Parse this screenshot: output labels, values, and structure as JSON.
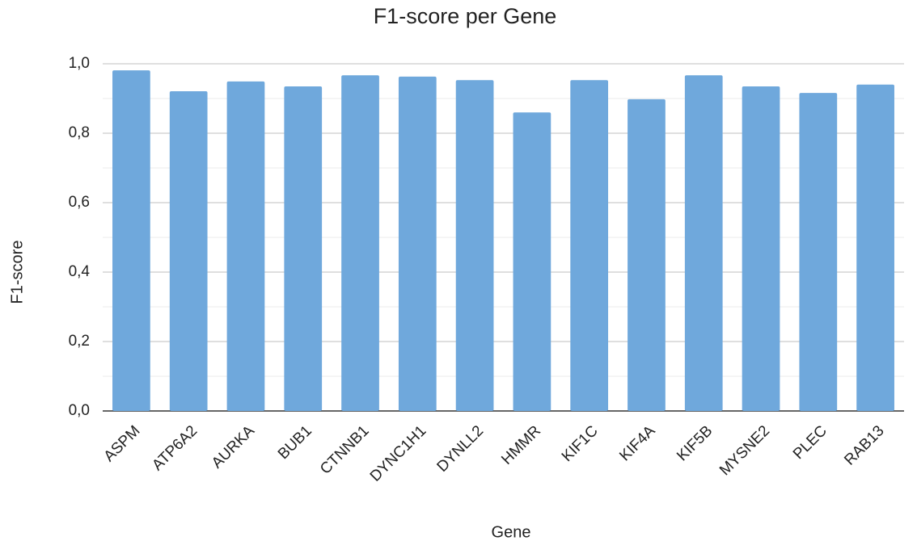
{
  "chart_data": {
    "type": "bar",
    "title": "F1-score per Gene",
    "x_label": "Gene",
    "y_label": "F1-score",
    "categories": [
      "ASPM",
      "ATP6A2",
      "AURKA",
      "BUB1",
      "CTNNB1",
      "DYNC1H1",
      "DYNLL2",
      "HMMR",
      "KIF1C",
      "KIF4A",
      "KIF5B",
      "MYSNE2",
      "PLEC",
      "RAB13"
    ],
    "values": [
      0.981,
      0.921,
      0.949,
      0.935,
      0.967,
      0.963,
      0.953,
      0.86,
      0.953,
      0.898,
      0.967,
      0.935,
      0.916,
      0.94
    ],
    "color": "#6fa8dc",
    "ylim": [
      0,
      1
    ],
    "yticks": [
      {
        "value": 0,
        "label": "0,0"
      },
      {
        "value": 0.2,
        "label": "0,2"
      },
      {
        "value": 0.4,
        "label": "0,4"
      },
      {
        "value": 0.6,
        "label": "0,6"
      },
      {
        "value": 0.8,
        "label": "0,8"
      },
      {
        "value": 1,
        "label": "1,0"
      }
    ],
    "minor_yticks": [
      0.1,
      0.3,
      0.5,
      0.7,
      0.9
    ],
    "grid": true
  }
}
